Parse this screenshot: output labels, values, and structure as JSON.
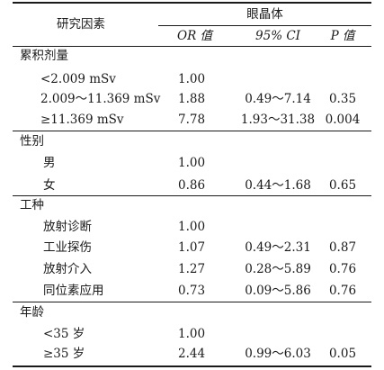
{
  "header": {
    "factor": "研究因素",
    "group": "眼晶体",
    "or_label": "OR 值",
    "ci_label": "95% CI",
    "p_label": "P 值"
  },
  "groups": [
    {
      "name": "累积剂量",
      "rows": [
        {
          "label": "<2.009 mSv",
          "or": "1.00",
          "ci": "",
          "p": ""
        },
        {
          "label": "2.009～11.369 mSv",
          "or": "1.88",
          "ci": "0.49～7.14",
          "p": "0.35"
        },
        {
          "label": "≥11.369 mSv",
          "or": "7.78",
          "ci": "1.93～31.38",
          "p": "0.004"
        }
      ]
    },
    {
      "name": "性别",
      "rows": [
        {
          "label": "男",
          "or": "1.00",
          "ci": "",
          "p": ""
        },
        {
          "label": "女",
          "or": "0.86",
          "ci": "0.44～1.68",
          "p": "0.65"
        }
      ]
    },
    {
      "name": "工种",
      "rows": [
        {
          "label": "放射诊断",
          "or": "1.00",
          "ci": "",
          "p": ""
        },
        {
          "label": "工业探伤",
          "or": "1.07",
          "ci": "0.49～2.31",
          "p": "0.87"
        },
        {
          "label": "放射介入",
          "or": "1.27",
          "ci": "0.28～5.89",
          "p": "0.76"
        },
        {
          "label": "同位素应用",
          "or": "0.73",
          "ci": "0.09～5.86",
          "p": "0.76"
        }
      ]
    },
    {
      "name": "年龄",
      "rows": [
        {
          "label": "<35 岁",
          "or": "1.00",
          "ci": "",
          "p": ""
        },
        {
          "label": "≥35 岁",
          "or": "2.44",
          "ci": "0.99～6.03",
          "p": "0.05"
        }
      ]
    }
  ]
}
